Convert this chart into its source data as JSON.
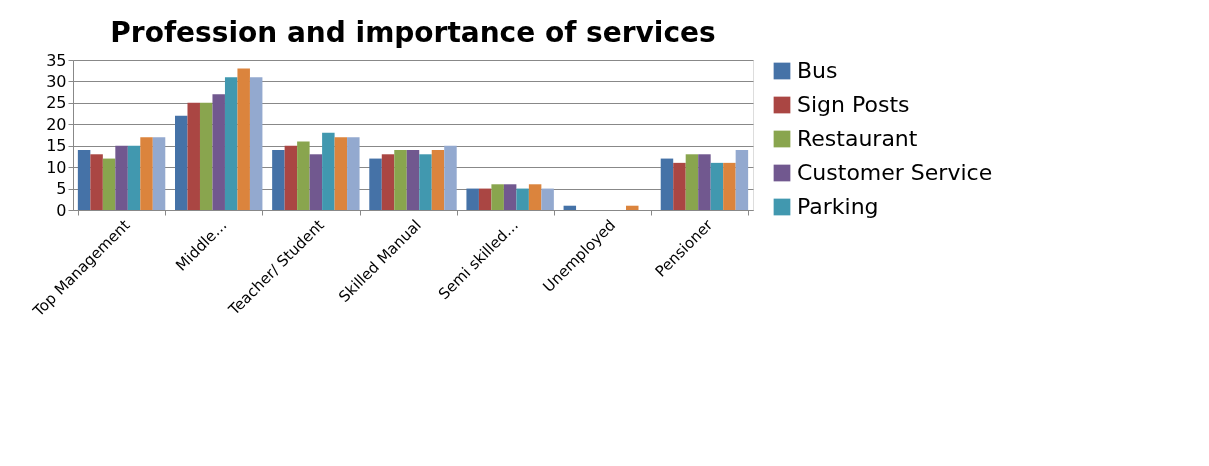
{
  "chart_data": {
    "type": "bar",
    "title": "Profession and importance of services",
    "categories": [
      "Top Management",
      "Middle…",
      "Teacher/ Student",
      "Skilled Manual",
      "Semi skilled…",
      "Unemployed",
      "Pensioner"
    ],
    "series": [
      {
        "name": "Bus",
        "color": "#4572a7",
        "values": [
          14,
          22,
          14,
          12,
          5,
          1,
          12
        ]
      },
      {
        "name": "Sign Posts",
        "color": "#aa4643",
        "values": [
          13,
          25,
          15,
          13,
          5,
          0,
          11
        ]
      },
      {
        "name": "Restaurant",
        "color": "#89a54e",
        "values": [
          12,
          25,
          16,
          14,
          6,
          0,
          13
        ]
      },
      {
        "name": "Customer Service",
        "color": "#71588f",
        "values": [
          15,
          27,
          13,
          14,
          6,
          0,
          13
        ]
      },
      {
        "name": "Parking",
        "color": "#4198af",
        "values": [
          15,
          31,
          18,
          13,
          5,
          0,
          11
        ]
      },
      {
        "color": "#db843d",
        "values": [
          17,
          33,
          17,
          14,
          6,
          1,
          11
        ]
      },
      {
        "color": "#93a9cf",
        "values": [
          17,
          31,
          17,
          15,
          5,
          0,
          14
        ]
      }
    ],
    "ylim": [
      0,
      35
    ],
    "yticks": [
      0,
      5,
      10,
      15,
      20,
      25,
      30,
      35
    ],
    "grid": "y",
    "legend": "right"
  }
}
